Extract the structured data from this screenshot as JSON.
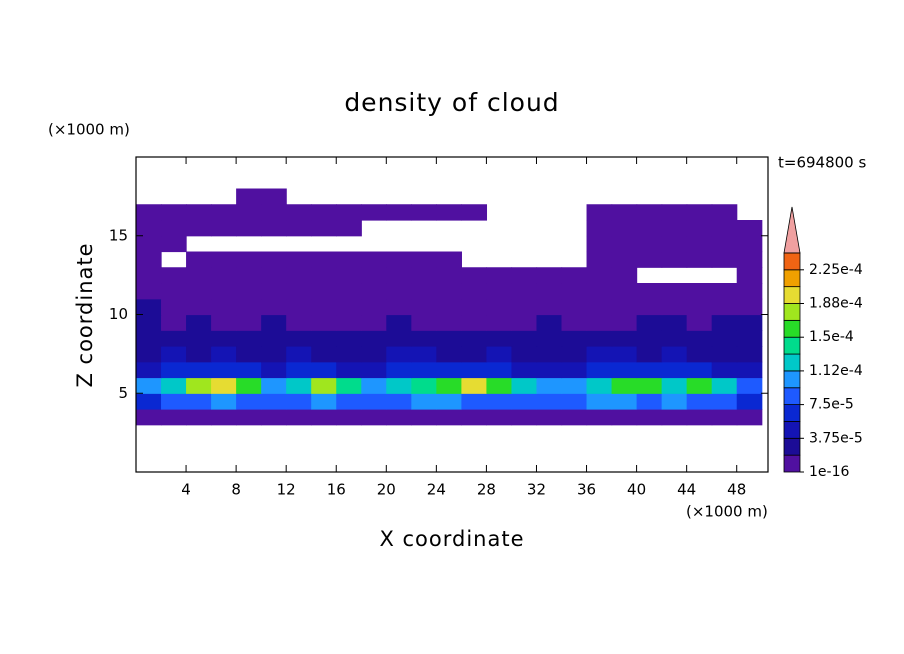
{
  "chart_data": {
    "type": "contour",
    "title": "density of cloud",
    "xlabel": "X coordinate",
    "ylabel": "Z coordinate",
    "x_unit": "(×1000 m)",
    "y_unit": "(×1000 m)",
    "annotation": "t=694800 s",
    "xlim": [
      0,
      50.5
    ],
    "ylim": [
      0,
      20
    ],
    "xticks": [
      4,
      8,
      12,
      16,
      20,
      24,
      28,
      32,
      36,
      40,
      44,
      48
    ],
    "yticks": [
      5,
      10,
      15
    ],
    "field": {
      "x": [
        1,
        3,
        5,
        7,
        9,
        11,
        13,
        15,
        17,
        19,
        21,
        23,
        25,
        27,
        29,
        31,
        33,
        35,
        37,
        39,
        41,
        43,
        45,
        47,
        49
      ],
      "z": [
        3.5,
        4.5,
        5.5,
        6.5,
        7.5,
        8.5,
        9.5,
        10.5,
        11.5,
        12.5,
        13.5,
        14.5,
        15.5,
        16.5,
        17.5
      ],
      "values": [
        [
          1e-06,
          1e-06,
          1e-06,
          1e-06,
          1e-06,
          1e-06,
          1e-06,
          1e-06,
          1e-06,
          1e-06,
          1e-06,
          1e-06,
          1e-06,
          1e-06,
          1e-06,
          1e-06,
          1e-06,
          1e-06,
          1e-06,
          1e-06,
          1e-06,
          1e-06,
          1e-06,
          1e-06,
          1e-06
        ],
        [
          6e-05,
          8e-05,
          9e-05,
          0.0001,
          9e-05,
          8e-05,
          9e-05,
          0.0001,
          9e-05,
          8e-05,
          9e-05,
          0.0001,
          0.0001,
          9e-05,
          8e-05,
          9e-05,
          8e-05,
          9e-05,
          0.0001,
          0.0001,
          9e-05,
          0.0001,
          9e-05,
          8e-05,
          7e-05
        ],
        [
          0.0001,
          0.00012,
          0.00017,
          0.00019,
          0.00015,
          0.00011,
          0.00013,
          0.00017,
          0.00014,
          0.00011,
          0.00012,
          0.00014,
          0.00016,
          0.00019,
          0.00015,
          0.00012,
          0.00011,
          0.0001,
          0.00012,
          0.00016,
          0.00015,
          0.00013,
          0.00016,
          0.00012,
          9e-05
        ],
        [
          5e-05,
          6e-05,
          7e-05,
          7e-05,
          6e-05,
          5e-05,
          6e-05,
          6e-05,
          5e-05,
          5e-05,
          6e-05,
          6e-05,
          7e-05,
          7e-05,
          6e-05,
          5e-05,
          5e-05,
          5e-05,
          6e-05,
          6e-05,
          6e-05,
          6e-05,
          6e-05,
          5e-05,
          5e-05
        ],
        [
          3e-05,
          4e-05,
          3e-05,
          4e-05,
          3e-05,
          3e-05,
          4e-05,
          3e-05,
          3e-05,
          3e-05,
          4e-05,
          4e-05,
          3e-05,
          3e-05,
          4e-05,
          3e-05,
          3e-05,
          3e-05,
          4e-05,
          4e-05,
          3e-05,
          4e-05,
          3e-05,
          3e-05,
          3e-05
        ],
        [
          2e-05,
          2.5e-05,
          2e-05,
          2e-05,
          2.5e-05,
          2e-05,
          2e-05,
          2.5e-05,
          2e-05,
          2e-05,
          2e-05,
          2.5e-05,
          2e-05,
          2e-05,
          2e-05,
          2e-05,
          2.5e-05,
          2e-05,
          2e-05,
          2e-05,
          2.5e-05,
          2e-05,
          2e-05,
          2.5e-05,
          2e-05
        ],
        [
          2e-05,
          1e-05,
          2e-05,
          1e-05,
          1e-05,
          2e-05,
          1e-05,
          1e-05,
          1e-05,
          1e-05,
          2e-05,
          1e-05,
          1e-05,
          1e-05,
          1e-05,
          1e-05,
          2e-05,
          1e-05,
          1e-05,
          1e-05,
          2e-05,
          2e-05,
          1e-05,
          2e-05,
          2e-05
        ],
        [
          2e-05,
          1e-05,
          5e-06,
          5e-06,
          5e-06,
          5e-06,
          5e-06,
          5e-06,
          5e-06,
          5e-06,
          5e-06,
          5e-06,
          5e-06,
          5e-06,
          5e-06,
          5e-06,
          5e-06,
          5e-06,
          5e-06,
          5e-06,
          5e-06,
          5e-06,
          5e-06,
          5e-06,
          5e-06
        ],
        [
          5e-06,
          5e-06,
          5e-06,
          5e-06,
          5e-06,
          5e-06,
          5e-06,
          5e-06,
          5e-06,
          5e-06,
          5e-06,
          5e-06,
          5e-06,
          5e-06,
          5e-06,
          5e-06,
          5e-06,
          5e-06,
          5e-06,
          5e-06,
          5e-06,
          5e-06,
          5e-06,
          5e-06,
          5e-06
        ],
        [
          5e-06,
          5e-06,
          5e-06,
          5e-06,
          5e-06,
          5e-06,
          5e-06,
          5e-06,
          5e-06,
          5e-06,
          5e-06,
          5e-06,
          5e-06,
          5e-06,
          5e-06,
          5e-06,
          5e-06,
          5e-06,
          5e-06,
          5e-06,
          null,
          null,
          null,
          null,
          5e-06
        ],
        [
          5e-06,
          null,
          5e-06,
          5e-06,
          5e-06,
          5e-06,
          5e-06,
          5e-06,
          5e-06,
          5e-06,
          5e-06,
          5e-06,
          5e-06,
          null,
          null,
          null,
          null,
          null,
          5e-06,
          5e-06,
          5e-06,
          5e-06,
          5e-06,
          5e-06,
          5e-06
        ],
        [
          5e-06,
          5e-06,
          null,
          null,
          null,
          null,
          null,
          null,
          null,
          null,
          null,
          null,
          null,
          null,
          null,
          null,
          null,
          null,
          5e-06,
          5e-06,
          5e-06,
          5e-06,
          5e-06,
          5e-06,
          5e-06
        ],
        [
          5e-06,
          5e-06,
          5e-06,
          5e-06,
          5e-06,
          5e-06,
          5e-06,
          5e-06,
          5e-06,
          null,
          null,
          null,
          null,
          null,
          null,
          null,
          null,
          null,
          5e-06,
          5e-06,
          5e-06,
          5e-06,
          5e-06,
          5e-06,
          5e-06
        ],
        [
          5e-06,
          5e-06,
          5e-06,
          5e-06,
          5e-06,
          5e-06,
          5e-06,
          5e-06,
          5e-06,
          5e-06,
          5e-06,
          5e-06,
          5e-06,
          5e-06,
          null,
          null,
          null,
          null,
          5e-06,
          5e-06,
          5e-06,
          5e-06,
          5e-06,
          5e-06,
          null
        ],
        [
          null,
          null,
          null,
          null,
          5e-06,
          5e-06,
          null,
          null,
          null,
          null,
          null,
          null,
          null,
          null,
          null,
          null,
          null,
          null,
          null,
          null,
          null,
          null,
          null,
          null,
          null
        ]
      ]
    },
    "colorbar": {
      "levels": [
        1e-16,
        1.875e-05,
        3.75e-05,
        5.625e-05,
        7.5e-05,
        9.375e-05,
        0.0001125,
        0.00013125,
        0.00015,
        0.00016875,
        0.0001875,
        0.00020625,
        0.000225,
        0.00024375
      ],
      "colors": [
        "#5010a0",
        "#1c0c96",
        "#1414b4",
        "#0a28d2",
        "#1e5aff",
        "#1e96ff",
        "#00c8c8",
        "#00dc8c",
        "#28dc28",
        "#a0e61e",
        "#e6dc32",
        "#f0a000",
        "#f06414",
        "#f0a0a0"
      ],
      "ticks": [
        {
          "value": 1e-16,
          "label": "1e-16"
        },
        {
          "value": 3.75e-05,
          "label": "3.75e-5"
        },
        {
          "value": 7.5e-05,
          "label": "7.5e-5"
        },
        {
          "value": 0.0001125,
          "label": "1.12e-4"
        },
        {
          "value": 0.00015,
          "label": "1.5e-4"
        },
        {
          "value": 0.0001875,
          "label": "1.88e-4"
        },
        {
          "value": 0.000225,
          "label": "2.25e-4"
        }
      ]
    }
  }
}
